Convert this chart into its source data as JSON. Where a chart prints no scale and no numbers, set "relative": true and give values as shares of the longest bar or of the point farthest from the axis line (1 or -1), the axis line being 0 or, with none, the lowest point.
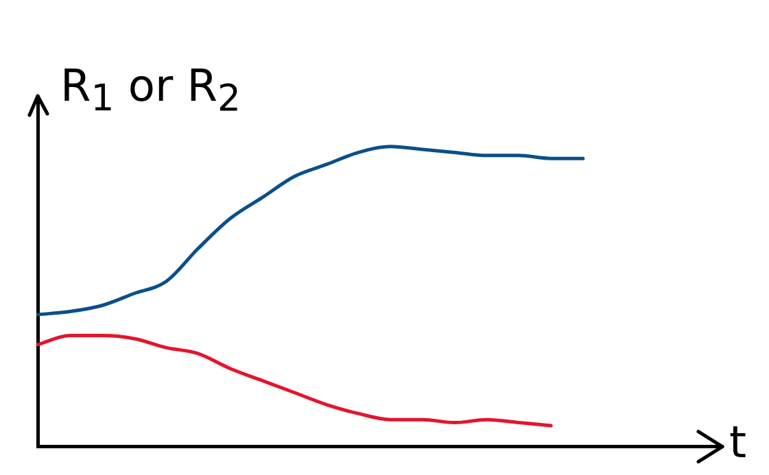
{
  "chart_data": {
    "type": "line",
    "relative": true,
    "ylabel": "R$_{1}$ or R$_{2}$",
    "xlabel": "t",
    "categories": [
      null,
      null,
      null,
      null,
      null,
      null,
      null,
      null,
      null,
      null,
      null,
      null,
      null,
      null,
      null,
      null,
      null,
      null
    ],
    "series": [
      {
        "color": "#0a4f8c",
        "values": [
          0.44,
          0.45,
          0.47,
          0.51,
          0.55,
          0.66,
          0.76,
          0.83,
          0.9,
          0.94,
          0.98,
          1,
          0.99,
          0.98,
          0.97,
          0.97,
          0.96,
          0.96
        ]
      },
      {
        "color": "#e5142b",
        "values": [
          0.34,
          0.37,
          0.37,
          0.36,
          0.33,
          0.31,
          0.26,
          0.22,
          0.18,
          0.14,
          0.11,
          0.09,
          0.09,
          0.08,
          0.09,
          0.08,
          0.07,
          null
        ]
      }
    ],
    "grid": false,
    "legend": false,
    "marker": "none",
    "line_style": "solid"
  }
}
